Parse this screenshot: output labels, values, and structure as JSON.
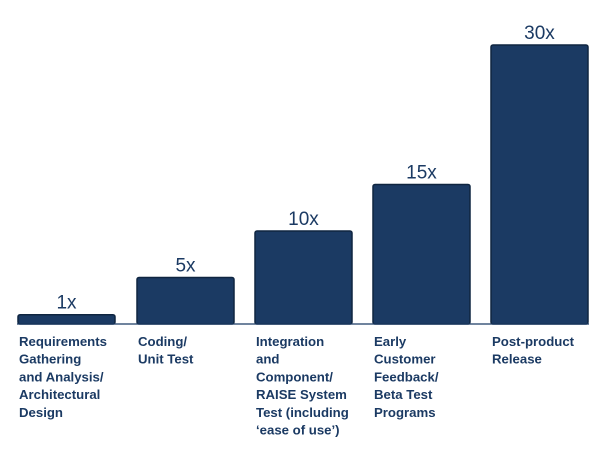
{
  "chart_data": {
    "type": "bar",
    "title": "",
    "xlabel": "",
    "ylabel": "",
    "ylim": [
      0,
      30
    ],
    "grid": false,
    "legend": "none",
    "bar_color": "#1b3a63",
    "categories": [
      [
        "Requirements",
        "Gathering",
        "and Analysis/",
        "Architectural",
        "Design"
      ],
      [
        "Coding/",
        "Unit Test"
      ],
      [
        "Integration",
        "and",
        "Component/",
        "RAISE System",
        "Test (including",
        "‘ease of use’)"
      ],
      [
        "Early",
        "Customer",
        "Feedback/",
        "Beta Test",
        "Programs"
      ],
      [
        "Post-product",
        "Release"
      ]
    ],
    "values": [
      1,
      5,
      10,
      15,
      30
    ],
    "value_labels": [
      "1x",
      "5x",
      "10x",
      "15x",
      "30x"
    ]
  }
}
